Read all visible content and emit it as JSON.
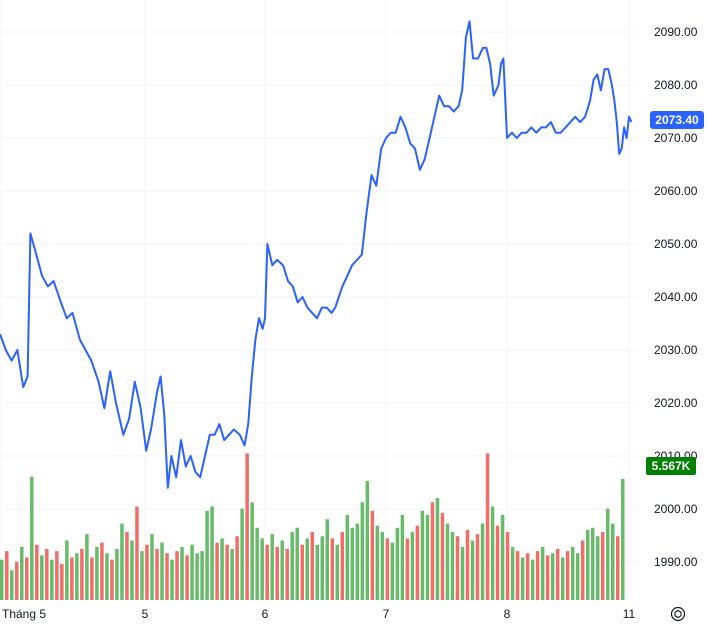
{
  "chart_data": {
    "type": "line",
    "title": "",
    "xlabel": "",
    "ylabel": "",
    "grid": true,
    "ylim": [
      1985,
      2095
    ],
    "y_ticks": [
      1990,
      2000,
      2010,
      2020,
      2030,
      2040,
      2050,
      2060,
      2070,
      2080,
      2090
    ],
    "y_tick_labels": [
      "1990.00",
      "2000.00",
      "2010.00",
      "2020.00",
      "2030.00",
      "2040.00",
      "2050.00",
      "2060.00",
      "2070.00",
      "2080.00",
      "2090.00"
    ],
    "x_tick_labels": [
      {
        "label": "Tháng 5",
        "t": 0.0
      },
      {
        "label": "5",
        "t": 1.0
      },
      {
        "label": "6",
        "t": 2.0
      },
      {
        "label": "7",
        "t": 3.0
      },
      {
        "label": "8",
        "t": 4.0
      },
      {
        "label": "11",
        "t": 5.0
      }
    ],
    "series": [
      {
        "color": "#2962ff",
        "points": [
          [
            0.0,
            2033
          ],
          [
            0.04,
            2030
          ],
          [
            0.08,
            2028
          ],
          [
            0.12,
            2030
          ],
          [
            0.16,
            2023
          ],
          [
            0.19,
            2025
          ],
          [
            0.21,
            2052
          ],
          [
            0.25,
            2048
          ],
          [
            0.29,
            2044
          ],
          [
            0.33,
            2042
          ],
          [
            0.37,
            2043
          ],
          [
            0.42,
            2039
          ],
          [
            0.46,
            2036
          ],
          [
            0.5,
            2037
          ],
          [
            0.55,
            2032
          ],
          [
            0.59,
            2030
          ],
          [
            0.63,
            2028
          ],
          [
            0.68,
            2024
          ],
          [
            0.72,
            2019
          ],
          [
            0.76,
            2026
          ],
          [
            0.8,
            2020
          ],
          [
            0.85,
            2014
          ],
          [
            0.89,
            2017
          ],
          [
            0.93,
            2024
          ],
          [
            0.97,
            2019
          ],
          [
            1.01,
            2011
          ],
          [
            1.05,
            2015
          ],
          [
            1.1,
            2022
          ],
          [
            1.13,
            2025
          ],
          [
            1.16,
            2018
          ],
          [
            1.19,
            2004
          ],
          [
            1.22,
            2010
          ],
          [
            1.26,
            2006
          ],
          [
            1.3,
            2013
          ],
          [
            1.34,
            2008
          ],
          [
            1.38,
            2010
          ],
          [
            1.42,
            2007
          ],
          [
            1.46,
            2006
          ],
          [
            1.5,
            2010
          ],
          [
            1.54,
            2014
          ],
          [
            1.58,
            2014
          ],
          [
            1.62,
            2016
          ],
          [
            1.66,
            2013
          ],
          [
            1.7,
            2014
          ],
          [
            1.74,
            2015
          ],
          [
            1.79,
            2014
          ],
          [
            1.83,
            2012
          ],
          [
            1.86,
            2016
          ],
          [
            1.89,
            2025
          ],
          [
            1.92,
            2032
          ],
          [
            1.95,
            2036
          ],
          [
            1.98,
            2034
          ],
          [
            2.0,
            2036
          ],
          [
            2.02,
            2050
          ],
          [
            2.06,
            2046
          ],
          [
            2.1,
            2047
          ],
          [
            2.15,
            2046
          ],
          [
            2.19,
            2043
          ],
          [
            2.23,
            2042
          ],
          [
            2.27,
            2039
          ],
          [
            2.31,
            2040
          ],
          [
            2.35,
            2038
          ],
          [
            2.39,
            2037
          ],
          [
            2.43,
            2036
          ],
          [
            2.47,
            2038
          ],
          [
            2.51,
            2038
          ],
          [
            2.55,
            2037
          ],
          [
            2.58,
            2038
          ],
          [
            2.61,
            2040
          ],
          [
            2.64,
            2042
          ],
          [
            2.68,
            2044
          ],
          [
            2.72,
            2046
          ],
          [
            2.76,
            2047
          ],
          [
            2.8,
            2048
          ],
          [
            2.84,
            2056
          ],
          [
            2.88,
            2063
          ],
          [
            2.92,
            2061
          ],
          [
            2.96,
            2068
          ],
          [
            3.0,
            2070
          ],
          [
            3.04,
            2071
          ],
          [
            3.08,
            2071
          ],
          [
            3.12,
            2074
          ],
          [
            3.16,
            2072
          ],
          [
            3.2,
            2069
          ],
          [
            3.24,
            2068
          ],
          [
            3.28,
            2064
          ],
          [
            3.32,
            2066
          ],
          [
            3.36,
            2070
          ],
          [
            3.4,
            2074
          ],
          [
            3.44,
            2078
          ],
          [
            3.48,
            2076
          ],
          [
            3.52,
            2076
          ],
          [
            3.56,
            2075
          ],
          [
            3.6,
            2076
          ],
          [
            3.63,
            2079
          ],
          [
            3.66,
            2089
          ],
          [
            3.69,
            2092
          ],
          [
            3.72,
            2085
          ],
          [
            3.76,
            2085
          ],
          [
            3.8,
            2087
          ],
          [
            3.83,
            2087
          ],
          [
            3.86,
            2084
          ],
          [
            3.89,
            2078
          ],
          [
            3.93,
            2080
          ],
          [
            3.95,
            2084
          ],
          [
            3.97,
            2085
          ],
          [
            4.0,
            2070
          ],
          [
            4.04,
            2071
          ],
          [
            4.08,
            2070
          ],
          [
            4.12,
            2071
          ],
          [
            4.16,
            2071
          ],
          [
            4.2,
            2072
          ],
          [
            4.24,
            2071
          ],
          [
            4.28,
            2072
          ],
          [
            4.32,
            2072
          ],
          [
            4.36,
            2073
          ],
          [
            4.4,
            2071
          ],
          [
            4.44,
            2071
          ],
          [
            4.48,
            2072
          ],
          [
            4.52,
            2073
          ],
          [
            4.56,
            2074
          ],
          [
            4.6,
            2073
          ],
          [
            4.64,
            2074
          ],
          [
            4.68,
            2077
          ],
          [
            4.71,
            2081
          ],
          [
            4.74,
            2082
          ],
          [
            4.77,
            2079
          ],
          [
            4.8,
            2083
          ],
          [
            4.83,
            2083
          ],
          [
            4.86,
            2080
          ],
          [
            4.88,
            2077
          ],
          [
            4.9,
            2073
          ],
          [
            4.92,
            2067
          ],
          [
            4.94,
            2068
          ],
          [
            4.96,
            2072
          ],
          [
            4.98,
            2070
          ],
          [
            5.0,
            2074
          ],
          [
            5.02,
            2073
          ]
        ]
      }
    ],
    "volume": {
      "up_color": "#4caf50",
      "down_color": "#ef5350",
      "max": 8.0,
      "values": [
        1.9,
        2.3,
        1.4,
        1.8,
        2.5,
        2.0,
        5.8,
        2.6,
        2.1,
        2.4,
        1.9,
        2.3,
        1.7,
        2.8,
        2.0,
        2.2,
        2.4,
        3.1,
        2.0,
        2.5,
        2.7,
        2.2,
        1.9,
        2.4,
        3.6,
        3.2,
        2.8,
        4.4,
        2.3,
        2.6,
        3.1,
        2.4,
        2.7,
        2.2,
        1.9,
        2.3,
        2.5,
        2.1,
        2.6,
        2.2,
        2.3,
        4.2,
        4.4,
        2.7,
        2.9,
        2.6,
        2.4,
        3.0,
        4.3,
        6.9,
        4.6,
        3.4,
        2.9,
        2.6,
        3.1,
        2.5,
        2.8,
        2.4,
        3.2,
        3.4,
        2.6,
        2.9,
        3.2,
        2.6,
        3.0,
        3.8,
        2.9,
        2.6,
        3.2,
        4.0,
        3.4,
        3.6,
        4.6,
        5.6,
        4.2,
        3.5,
        3.2,
        2.9,
        2.7,
        3.4,
        4.0,
        2.9,
        3.2,
        3.5,
        4.2,
        4.0,
        4.6,
        4.8,
        4.1,
        3.6,
        3.2,
        3.0,
        2.5,
        3.3,
        2.8,
        3.1,
        3.6,
        6.9,
        4.4,
        3.5,
        4.0,
        3.2,
        2.5,
        2.3,
        2.0,
        2.2,
        1.9,
        2.3,
        2.5,
        2.1,
        2.2,
        2.4,
        2.0,
        2.3,
        2.5,
        2.2,
        2.8,
        3.3,
        3.4,
        3.0,
        3.2,
        4.3,
        3.6,
        3.0,
        5.7
      ],
      "up": [
        1,
        0,
        1,
        0,
        1,
        0,
        1,
        0,
        1,
        0,
        1,
        0,
        0,
        1,
        0,
        1,
        0,
        1,
        0,
        1,
        0,
        1,
        0,
        1,
        1,
        0,
        1,
        0,
        1,
        0,
        1,
        0,
        1,
        0,
        1,
        0,
        1,
        0,
        1,
        1,
        1,
        1,
        1,
        0,
        1,
        0,
        1,
        0,
        1,
        0,
        1,
        1,
        1,
        0,
        1,
        0,
        1,
        0,
        1,
        1,
        0,
        1,
        0,
        1,
        1,
        1,
        0,
        1,
        0,
        1,
        1,
        1,
        1,
        1,
        0,
        1,
        1,
        0,
        1,
        1,
        1,
        0,
        1,
        0,
        1,
        1,
        0,
        1,
        0,
        1,
        1,
        0,
        1,
        0,
        1,
        0,
        1,
        0,
        1,
        0,
        1,
        0,
        1,
        0,
        1,
        0,
        1,
        0,
        1,
        0,
        1,
        0,
        1,
        0,
        1,
        1,
        0,
        1,
        1,
        1,
        0,
        1,
        1,
        0,
        1
      ]
    },
    "last_price": {
      "label": "2073.40",
      "value": 2073.4,
      "color": "#2962ff"
    },
    "last_volume": {
      "label": "5.567K",
      "color": "#008000"
    }
  },
  "toolbar": {
    "settings_icon": "gear-icon"
  }
}
